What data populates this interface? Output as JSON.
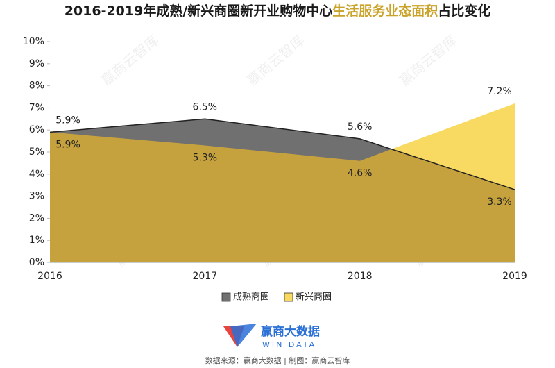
{
  "chart_data": {
    "type": "area",
    "title": [
      "2016-2019年成熟/新兴商圈新开业购物中心",
      "生活服务业态面积",
      "占比变化"
    ],
    "title_colors": [
      "#1a1a1a",
      "#c9a227",
      "#1a1a1a"
    ],
    "categories": [
      "2016",
      "2017",
      "2018",
      "2019"
    ],
    "series": [
      {
        "name": "成熟商圈",
        "color": "#707070",
        "values": [
          5.9,
          6.5,
          5.6,
          3.3
        ],
        "value_labels": [
          "5.9%",
          "6.5%",
          "5.6%",
          "3.3%"
        ]
      },
      {
        "name": "新兴商圈",
        "color": "#f8da62",
        "values": [
          5.9,
          5.3,
          4.6,
          7.2
        ],
        "value_labels": [
          "5.9%",
          "5.3%",
          "4.6%",
          "7.2%"
        ]
      }
    ],
    "overlap_color": "#c6a23e",
    "ylim": [
      0,
      10
    ],
    "yticks": [
      {
        "value": 0,
        "label": "0%"
      },
      {
        "value": 1,
        "label": "1%"
      },
      {
        "value": 2,
        "label": "2%"
      },
      {
        "value": 3,
        "label": "3%"
      },
      {
        "value": 4,
        "label": "4%"
      },
      {
        "value": 5,
        "label": "5%"
      },
      {
        "value": 6,
        "label": "6%"
      },
      {
        "value": 7,
        "label": "7%"
      },
      {
        "value": 8,
        "label": "8%"
      },
      {
        "value": 9,
        "label": "9%"
      },
      {
        "value": 10,
        "label": "10%"
      }
    ],
    "grid": false,
    "legend": "bottom",
    "watermark": "赢商云智库"
  },
  "footer": {
    "logo_name": "赢商大数据",
    "logo_sub": "WIN DATA",
    "source": "数据来源：赢商大数据 | 制图：赢商云智库"
  }
}
